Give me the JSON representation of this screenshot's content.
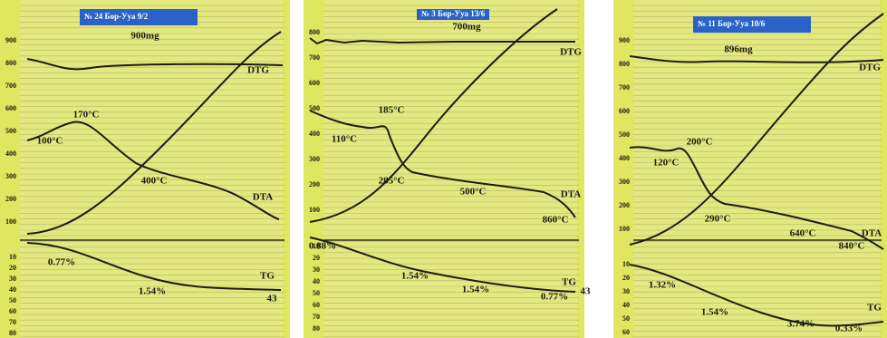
{
  "panels": [
    {
      "header": "№ 24   Бор-Ууа          9/2",
      "mass": "900mg",
      "upper_ticks": [
        "900",
        "800",
        "700",
        "600",
        "500",
        "400",
        "300",
        "200",
        "100"
      ],
      "lower_ticks": [
        "10",
        "20",
        "30",
        "40",
        "50",
        "60",
        "70",
        "80"
      ],
      "labels": [
        "DTG",
        "DTA",
        "TG",
        "170°C",
        "100°C",
        "400°C",
        "0.77%",
        "1.54%",
        "43"
      ]
    },
    {
      "header": "№ 3   Бор-Ууа      13/6",
      "mass": "700mg",
      "upper_ticks": [
        "800",
        "700",
        "600",
        "500",
        "400",
        "300",
        "200",
        "100"
      ],
      "lower_ticks": [
        "10",
        "20",
        "30",
        "40",
        "50",
        "60",
        "70",
        "80"
      ],
      "labels": [
        "DTG",
        "DTA",
        "TG",
        "185°C",
        "110°C",
        "285°C",
        "500°C",
        "860°C",
        "0.88%",
        "1.54%",
        "1.54%",
        "0.77%",
        "43"
      ]
    },
    {
      "header": "№ 11   Бор-Ууа          10/6",
      "mass": "896mg",
      "upper_ticks": [
        "900",
        "800",
        "700",
        "600",
        "500",
        "400",
        "300",
        "200",
        "100"
      ],
      "lower_ticks": [
        "10",
        "20",
        "30",
        "40",
        "50",
        "60"
      ],
      "labels": [
        "DTG",
        "DTA",
        "TG",
        "200°C",
        "120°C",
        "290°C",
        "640°C",
        "840°C",
        "1.32%",
        "1.54%",
        "3.74%",
        "0.33%"
      ]
    }
  ]
}
